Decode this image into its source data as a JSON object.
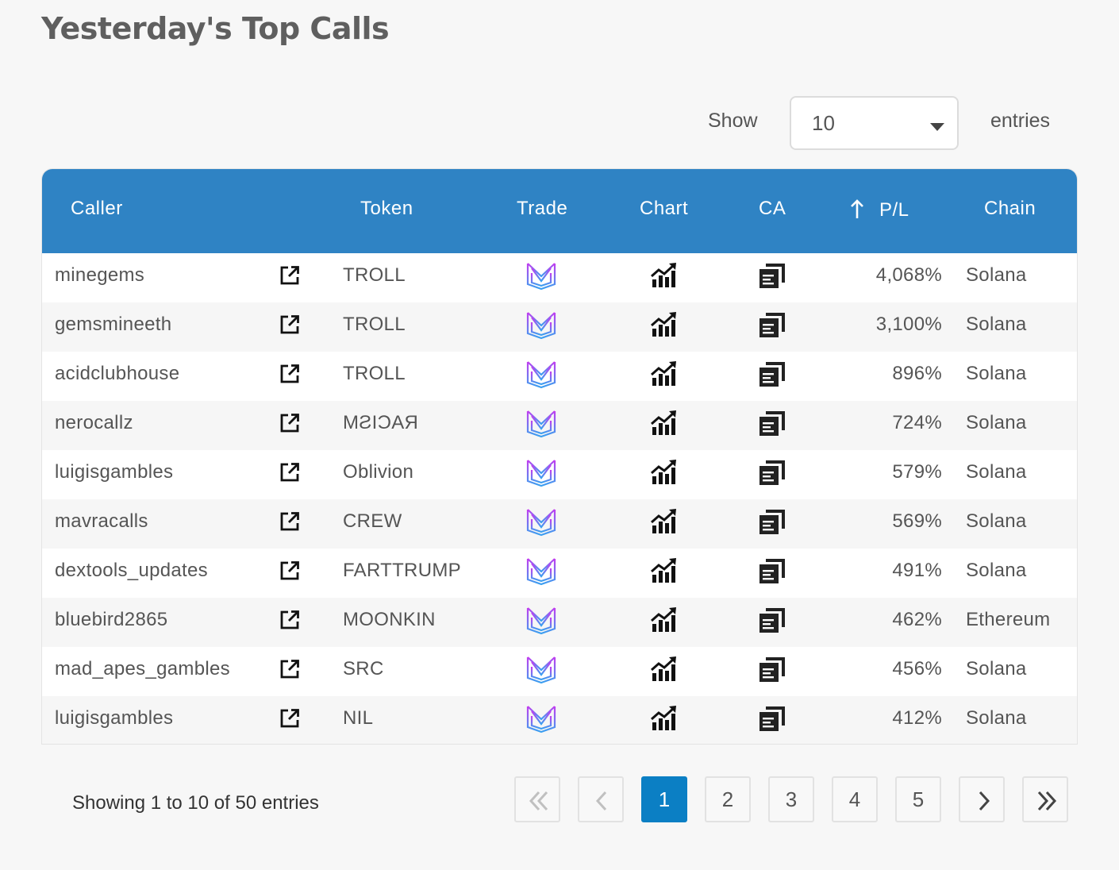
{
  "page": {
    "title": "Yesterday's Top Calls"
  },
  "length_menu": {
    "show_label": "Show",
    "selected": "10",
    "entries_label": "entries"
  },
  "table": {
    "headers": {
      "caller": "Caller",
      "token": "Token",
      "trade": "Trade",
      "chart": "Chart",
      "ca": "CA",
      "pl": "P/L",
      "chain": "Chain"
    },
    "sorted_column": "pl",
    "sort_direction": "ascending-arrow",
    "rows": [
      {
        "caller": "minegems",
        "token": "TROLL",
        "pl": "4,068%",
        "chain": "Solana"
      },
      {
        "caller": "gemsmineeth",
        "token": "TROLL",
        "pl": "3,100%",
        "chain": "Solana"
      },
      {
        "caller": "acidclubhouse",
        "token": "TROLL",
        "pl": "896%",
        "chain": "Solana"
      },
      {
        "caller": "nerocallz",
        "token": "MƧIƆAЯ",
        "pl": "724%",
        "chain": "Solana"
      },
      {
        "caller": "luigisgambles",
        "token": "Oblivion",
        "pl": "579%",
        "chain": "Solana"
      },
      {
        "caller": "mavracalls",
        "token": "CREW",
        "pl": "569%",
        "chain": "Solana"
      },
      {
        "caller": "dextools_updates",
        "token": "FARTTRUMP",
        "pl": "491%",
        "chain": "Solana"
      },
      {
        "caller": "bluebird2865",
        "token": "MOONKIN",
        "pl": "462%",
        "chain": "Ethereum"
      },
      {
        "caller": "mad_apes_gambles",
        "token": "SRC",
        "pl": "456%",
        "chain": "Solana"
      },
      {
        "caller": "luigisgambles",
        "token": "NIL",
        "pl": "412%",
        "chain": "Solana"
      }
    ],
    "icons": {
      "caller_link": "external-link-icon",
      "trade": "trade-logo-icon",
      "chart": "chart-growth-icon",
      "ca": "copy-contract-icon"
    }
  },
  "footer": {
    "info": "Showing 1 to 10 of 50 entries",
    "pagination": {
      "pages": [
        "1",
        "2",
        "3",
        "4",
        "5"
      ],
      "current": "1",
      "first_icon": "double-chevron-left-icon",
      "prev_icon": "chevron-left-icon",
      "next_icon": "chevron-right-icon",
      "last_icon": "double-chevron-right-icon"
    }
  },
  "colors": {
    "header_bg": "#2f83c4",
    "active_page": "#0b7fc4",
    "trade_logo_gradient": [
      "#c43cf0",
      "#3aa0f0"
    ]
  }
}
